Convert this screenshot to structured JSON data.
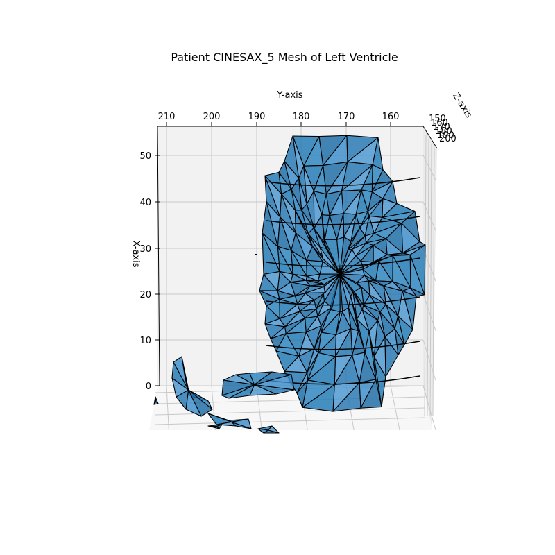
{
  "chart_data": {
    "type": "mesh3d",
    "title": "Patient CINESAX_5 Mesh of Left Ventricle",
    "xlabel": "X-axis",
    "ylabel": "Y-axis",
    "zlabel": "Z-axis",
    "x_ticks": [
      "0",
      "10",
      "20",
      "30",
      "40",
      "50"
    ],
    "y_ticks": [
      "210",
      "200",
      "190",
      "180",
      "170",
      "160"
    ],
    "z_ticks": [
      "150",
      "160",
      "170",
      "180",
      "190",
      "200"
    ],
    "xlim": [
      -8,
      56
    ],
    "ylim": [
      212,
      153
    ],
    "zlim": [
      150,
      200
    ],
    "grid": true,
    "colors": {
      "face": "#1f77b4",
      "edge": "#000000",
      "pane": "#f2f2f2",
      "grid": "#c8c8c8"
    }
  }
}
